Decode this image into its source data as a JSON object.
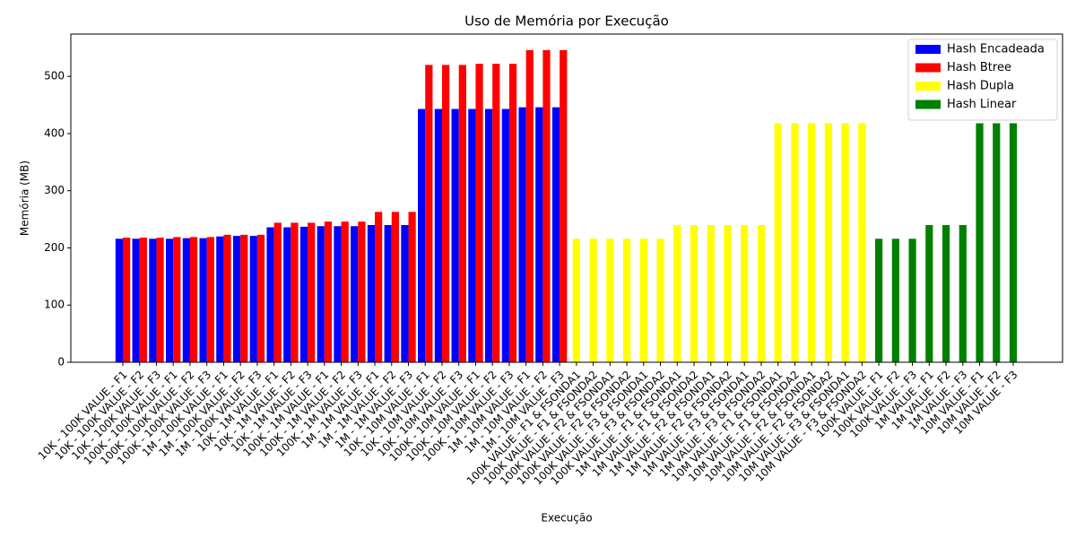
{
  "chart_data": {
    "type": "bar",
    "title": "Uso de Memória por Execução",
    "x_label": "Execução",
    "y_label": "Memória (MB)",
    "categories": [
      "10K - 100K VALUE - F1",
      "10K - 100K VALUE - F2",
      "10K - 100K VALUE - F3",
      "100K - 100K VALUE - F1",
      "100K - 100K VALUE - F2",
      "100K - 100K VALUE - F3",
      "1M - 100K VALUE - F1",
      "1M - 100K VALUE - F2",
      "1M - 100K VALUE - F3",
      "10K - 1M VALUE - F1",
      "10K - 1M VALUE - F2",
      "10K - 1M VALUE - F3",
      "100K - 1M VALUE - F1",
      "100K - 1M VALUE - F2",
      "100K - 1M VALUE - F3",
      "1M - 1M VALUE - F1",
      "1M - 1M VALUE - F2",
      "1M - 1M VALUE - F3",
      "10K - 10M VALUE - F1",
      "10K - 10M VALUE - F2",
      "10K - 10M VALUE - F3",
      "100K - 10M VALUE - F1",
      "100K - 10M VALUE - F2",
      "100K - 10M VALUE - F3",
      "1M - 10M VALUE - F1",
      "1M - 10M VALUE - F2",
      "1M - 10M VALUE - F3",
      "100K VALUE - F1 & FSONDA1",
      "100K VALUE - F1 & FSONDA2",
      "100K VALUE - F2 & FSONDA1",
      "100K VALUE - F2 & FSONDA2",
      "100K VALUE - F3 & FSONDA1",
      "100K VALUE - F3 & FSONDA2",
      "1M VALUE - F1 & FSONDA1",
      "1M VALUE - F1 & FSONDA2",
      "1M VALUE - F2 & FSONDA1",
      "1M VALUE - F2 & FSONDA2",
      "1M VALUE - F3 & FSONDA1",
      "1M VALUE - F3 & FSONDA2",
      "10M VALUE - F1 & FSONDA1",
      "10M VALUE - F1 & FSONDA2",
      "10M VALUE - F2 & FSONDA1",
      "10M VALUE - F2 & FSONDA2",
      "10M VALUE - F3 & FSONDA1",
      "10M VALUE - F3 & FSONDA2",
      "100K VALUE - F1",
      "100K VALUE - F2",
      "100K VALUE - F3",
      "1M VALUE - F1",
      "1M VALUE - F2",
      "1M VALUE - F3",
      "10M VALUE - F1",
      "10M VALUE - F2",
      "10M VALUE - F3"
    ],
    "series": [
      {
        "name": "Hash Encadeada",
        "color": "#0000ff",
        "values": [
          216,
          216,
          216,
          216,
          217,
          217,
          220,
          221,
          221,
          236,
          236,
          237,
          238,
          238,
          238,
          240,
          240,
          240,
          443,
          443,
          443,
          443,
          443,
          443,
          446,
          446,
          446,
          null,
          null,
          null,
          null,
          null,
          null,
          null,
          null,
          null,
          null,
          null,
          null,
          null,
          null,
          null,
          null,
          null,
          null,
          null,
          null,
          null,
          null,
          null,
          null,
          null,
          null,
          null
        ]
      },
      {
        "name": "Hash Btree",
        "color": "#ff0000",
        "values": [
          218,
          218,
          218,
          219,
          219,
          219,
          223,
          223,
          223,
          244,
          244,
          244,
          246,
          246,
          246,
          263,
          263,
          263,
          520,
          520,
          520,
          522,
          522,
          522,
          546,
          546,
          546,
          null,
          null,
          null,
          null,
          null,
          null,
          null,
          null,
          null,
          null,
          null,
          null,
          null,
          null,
          null,
          null,
          null,
          null,
          null,
          null,
          null,
          null,
          null,
          null,
          null,
          null,
          null
        ]
      },
      {
        "name": "Hash Dupla",
        "color": "#ffff00",
        "values": [
          null,
          null,
          null,
          null,
          null,
          null,
          null,
          null,
          null,
          null,
          null,
          null,
          null,
          null,
          null,
          null,
          null,
          null,
          null,
          null,
          null,
          null,
          null,
          null,
          null,
          null,
          null,
          216,
          216,
          216,
          216,
          216,
          216,
          240,
          240,
          240,
          240,
          240,
          240,
          418,
          418,
          418,
          418,
          418,
          418,
          null,
          null,
          null,
          null,
          null,
          null,
          null,
          null,
          null
        ]
      },
      {
        "name": "Hash Linear",
        "color": "#008000",
        "values": [
          null,
          null,
          null,
          null,
          null,
          null,
          null,
          null,
          null,
          null,
          null,
          null,
          null,
          null,
          null,
          null,
          null,
          null,
          null,
          null,
          null,
          null,
          null,
          null,
          null,
          null,
          null,
          null,
          null,
          null,
          null,
          null,
          null,
          null,
          null,
          null,
          null,
          null,
          null,
          null,
          null,
          null,
          null,
          null,
          null,
          216,
          216,
          216,
          240,
          240,
          240,
          418,
          418,
          418
        ]
      }
    ],
    "ylim": [
      0,
      574
    ],
    "yticks": [
      0,
      100,
      200,
      300,
      400,
      500
    ],
    "legend": "upper right"
  }
}
